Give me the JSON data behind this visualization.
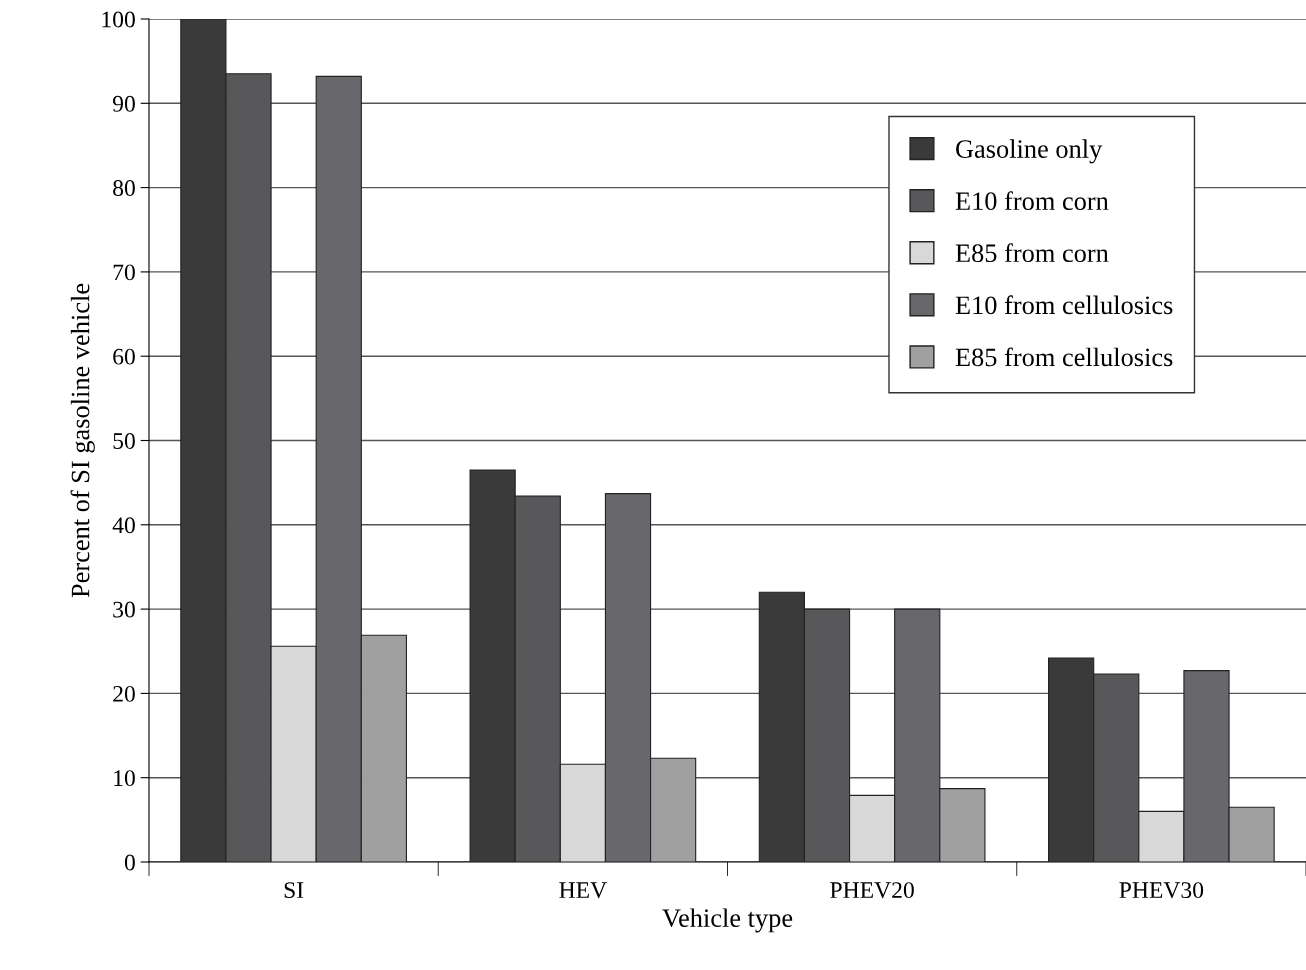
{
  "chart_data": {
    "type": "bar",
    "xlabel": "Vehicle type",
    "ylabel": "Percent of SI gasoline vehicle",
    "categories": [
      "SI",
      "HEV",
      "PHEV20",
      "PHEV30"
    ],
    "series": [
      {
        "name": "Gasoline only",
        "color": "#3a3a3a",
        "values": [
          100,
          46.5,
          32.0,
          24.2
        ]
      },
      {
        "name": "E10 from corn",
        "color": "#58585a",
        "values": [
          93.5,
          43.4,
          30.0,
          22.3
        ]
      },
      {
        "name": "E85 from corn",
        "color": "#d8d8d8",
        "values": [
          25.6,
          11.6,
          7.9,
          6.0
        ]
      },
      {
        "name": "E10 from cellulosics",
        "color": "#68686c",
        "values": [
          93.2,
          43.7,
          30.0,
          22.7
        ]
      },
      {
        "name": "E85 from cellulosics",
        "color": "#a0a0a0",
        "values": [
          26.9,
          12.3,
          8.7,
          6.5
        ]
      }
    ],
    "ylim": [
      0,
      100
    ],
    "yticks": [
      0,
      10,
      20,
      30,
      40,
      50,
      60,
      70,
      80,
      90,
      100
    ],
    "grid": "y",
    "legend": "top right"
  }
}
